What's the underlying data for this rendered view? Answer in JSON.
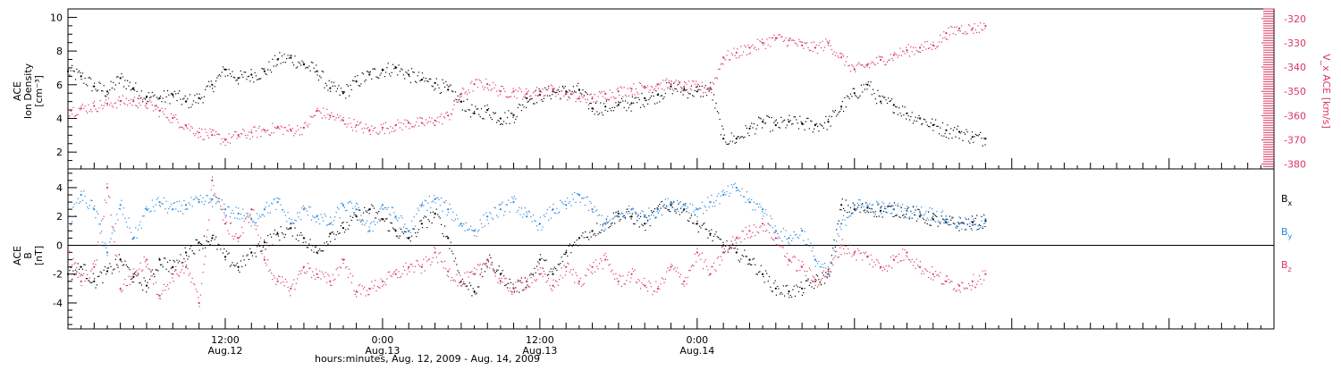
{
  "chart_data": [
    {
      "type": "scatter",
      "panel": "density-speed",
      "ylabel_left": [
        "ACE",
        "Ion Density",
        "[cm⁻³]"
      ],
      "ylabel_right": "V_x ACE [km/s]",
      "ylim_left": [
        1,
        10.5
      ],
      "yticks_left": [
        2,
        4,
        6,
        8,
        10
      ],
      "ylim_right": [
        -382,
        -316
      ],
      "yticks_right": [
        -320,
        -330,
        -340,
        -350,
        -360,
        -370,
        -380
      ],
      "grid": false,
      "colors": {
        "density": "#000000",
        "vx": "#d9375f"
      },
      "series": [
        {
          "name": "Ion Density",
          "axis": "left",
          "color": "#000000",
          "x_hours": [
            0,
            1,
            2,
            3,
            4,
            5,
            6,
            7,
            8,
            9,
            10,
            11,
            12,
            13,
            14,
            15,
            16,
            17,
            18,
            19,
            20,
            21,
            22,
            23,
            24,
            25,
            26,
            27,
            28,
            29,
            30,
            31,
            32,
            33,
            34,
            35,
            36,
            37,
            38,
            39,
            40,
            41,
            42,
            43,
            44,
            45,
            46,
            47,
            48,
            49,
            50,
            51,
            52,
            53,
            54,
            55,
            56,
            57,
            58,
            59,
            60,
            61,
            62,
            63,
            64,
            65,
            66,
            67,
            68,
            69,
            70
          ],
          "values": [
            6.8,
            6.5,
            5.9,
            5.6,
            6.4,
            5.8,
            5.3,
            5.2,
            5.4,
            5.0,
            5.2,
            6.0,
            6.9,
            6.4,
            6.6,
            6.8,
            7.5,
            7.6,
            7.2,
            6.8,
            5.8,
            5.5,
            6.2,
            6.6,
            6.9,
            7.0,
            6.6,
            6.3,
            6.1,
            5.7,
            5.0,
            4.3,
            4.5,
            4.0,
            4.2,
            5.2,
            5.4,
            5.6,
            5.6,
            5.7,
            4.6,
            4.7,
            4.8,
            4.9,
            5.2,
            5.4,
            5.9,
            5.7,
            5.6,
            5.8,
            2.8,
            2.8,
            3.4,
            3.8,
            3.6,
            3.8,
            3.7,
            3.6,
            3.8,
            4.7,
            5.5,
            6.0,
            5.0,
            4.8,
            4.3,
            4.0,
            3.6,
            3.3,
            3.2,
            2.9,
            2.8
          ]
        },
        {
          "name": "V_x",
          "axis": "right",
          "color": "#d9375f",
          "x_hours": [
            0,
            1,
            2,
            3,
            4,
            5,
            6,
            7,
            8,
            9,
            10,
            11,
            12,
            13,
            14,
            15,
            16,
            17,
            18,
            19,
            20,
            21,
            22,
            23,
            24,
            25,
            26,
            27,
            28,
            29,
            30,
            31,
            32,
            33,
            34,
            35,
            36,
            37,
            38,
            39,
            40,
            41,
            42,
            43,
            44,
            45,
            46,
            47,
            48,
            49,
            50,
            51,
            52,
            53,
            54,
            55,
            56,
            57,
            58,
            59,
            60,
            61,
            62,
            63,
            64,
            65,
            66,
            67,
            68,
            69,
            70
          ],
          "values": [
            -358,
            -357,
            -356,
            -355,
            -354,
            -354,
            -355,
            -358,
            -361,
            -364,
            -367,
            -368,
            -370,
            -368,
            -367,
            -366,
            -365,
            -366,
            -365,
            -358,
            -360,
            -362,
            -364,
            -366,
            -365,
            -364,
            -363,
            -363,
            -362,
            -360,
            -351,
            -347,
            -347,
            -350,
            -350,
            -351,
            -350,
            -349,
            -351,
            -353,
            -353,
            -351,
            -350,
            -349,
            -348,
            -347,
            -347,
            -348,
            -348,
            -349,
            -336,
            -334,
            -332,
            -330,
            -328,
            -329,
            -331,
            -332,
            -330,
            -336,
            -341,
            -339,
            -337,
            -335,
            -333,
            -332,
            -331,
            -326,
            -324,
            -324,
            -323
          ]
        }
      ]
    },
    {
      "type": "scatter",
      "panel": "imf",
      "ylabel_left": [
        "ACE",
        "B",
        "[nT]"
      ],
      "ylim": [
        -5.8,
        5.3
      ],
      "yticks": [
        -4,
        -2,
        0,
        2,
        4
      ],
      "grid": false,
      "zero_line": true,
      "colors": {
        "bx": "#000000",
        "by": "#2a87dc",
        "bz": "#d9375f"
      },
      "legend": {
        "placement": "right",
        "entries": [
          {
            "label": "Bx",
            "main": "B",
            "sub": "x",
            "color": "#000000"
          },
          {
            "label": "By",
            "main": "B",
            "sub": "y",
            "color": "#2a87dc"
          },
          {
            "label": "Bz",
            "main": "B",
            "sub": "z",
            "color": "#d9375f"
          }
        ]
      },
      "series": [
        {
          "name": "Bx",
          "color": "#000000",
          "x_hours": [
            0,
            1,
            2,
            3,
            4,
            5,
            6,
            7,
            8,
            9,
            10,
            11,
            12,
            13,
            14,
            15,
            16,
            17,
            18,
            19,
            20,
            21,
            22,
            23,
            24,
            25,
            26,
            27,
            28,
            29,
            30,
            31,
            32,
            33,
            34,
            35,
            36,
            37,
            38,
            39,
            40,
            41,
            42,
            43,
            44,
            45,
            46,
            47,
            48,
            49,
            50,
            51,
            52,
            53,
            54,
            55,
            56,
            57,
            58,
            59,
            60,
            61,
            62,
            63,
            64,
            65,
            66,
            67,
            68,
            69,
            70
          ],
          "values": [
            -2.0,
            -1.5,
            -2.5,
            -1.8,
            -1.0,
            -2.2,
            -2.8,
            -1.0,
            -1.5,
            -0.5,
            0.2,
            0.5,
            -0.8,
            -1.5,
            -0.5,
            0.2,
            0.8,
            1.2,
            0.5,
            -0.5,
            0.8,
            1.2,
            2.0,
            2.5,
            1.8,
            1.0,
            0.5,
            1.5,
            2.2,
            0.5,
            -2.5,
            -3.2,
            -1.0,
            -2.0,
            -3.0,
            -2.5,
            -1.0,
            -2.0,
            -0.5,
            0.5,
            1.0,
            1.5,
            2.2,
            2.0,
            1.5,
            2.5,
            2.8,
            2.5,
            1.5,
            0.8,
            0.0,
            -0.5,
            -1.0,
            -2.0,
            -3.0,
            -3.2,
            -3.0,
            -2.5,
            -2.0,
            2.8,
            2.5,
            2.6,
            2.4,
            2.5,
            2.4,
            2.0,
            1.8,
            1.6,
            1.5,
            1.6,
            1.7
          ]
        },
        {
          "name": "By",
          "color": "#2a87dc",
          "x_hours": [
            0,
            1,
            2,
            3,
            4,
            5,
            6,
            7,
            8,
            9,
            10,
            11,
            12,
            13,
            14,
            15,
            16,
            17,
            18,
            19,
            20,
            21,
            22,
            23,
            24,
            25,
            26,
            27,
            28,
            29,
            30,
            31,
            32,
            33,
            34,
            35,
            36,
            37,
            38,
            39,
            40,
            41,
            42,
            43,
            44,
            45,
            46,
            47,
            48,
            49,
            50,
            51,
            52,
            53,
            54,
            55,
            56,
            57,
            58,
            59,
            60,
            61,
            62,
            63,
            64,
            65,
            66,
            67,
            68,
            69,
            70
          ],
          "values": [
            1.5,
            3.5,
            2.5,
            -0.5,
            2.8,
            0.5,
            2.5,
            3.0,
            2.5,
            2.8,
            3.0,
            3.2,
            2.5,
            2.2,
            1.8,
            2.5,
            3.0,
            1.5,
            2.5,
            2.0,
            1.5,
            2.8,
            2.5,
            1.0,
            2.8,
            2.0,
            1.0,
            2.8,
            3.2,
            2.5,
            1.5,
            1.0,
            2.0,
            2.5,
            3.0,
            2.0,
            1.5,
            2.5,
            2.8,
            3.5,
            2.5,
            1.5,
            2.0,
            2.5,
            2.0,
            2.5,
            3.0,
            2.8,
            2.5,
            3.0,
            3.5,
            4.0,
            3.0,
            2.5,
            1.0,
            0.5,
            1.0,
            -1.0,
            -2.0,
            1.5,
            2.8,
            2.7,
            2.6,
            2.5,
            2.4,
            2.3,
            2.2,
            1.8,
            1.5,
            1.4,
            1.8
          ]
        },
        {
          "name": "Bz",
          "color": "#d9375f",
          "x_hours": [
            0,
            1,
            2,
            3,
            4,
            5,
            6,
            7,
            8,
            9,
            10,
            11,
            12,
            13,
            14,
            15,
            16,
            17,
            18,
            19,
            20,
            21,
            22,
            23,
            24,
            25,
            26,
            27,
            28,
            29,
            30,
            31,
            32,
            33,
            34,
            35,
            36,
            37,
            38,
            39,
            40,
            41,
            42,
            43,
            44,
            45,
            46,
            47,
            48,
            49,
            50,
            51,
            52,
            53,
            54,
            55,
            56,
            57,
            58,
            59,
            60,
            61,
            62,
            63,
            64,
            65,
            66,
            67,
            68,
            69,
            70
          ],
          "values": [
            -0.5,
            -2.5,
            -1.5,
            4.0,
            -3.0,
            -2.0,
            -1.0,
            -3.5,
            -2.0,
            -1.5,
            -4.0,
            4.5,
            1.5,
            0.5,
            2.5,
            -1.0,
            -2.5,
            -3.0,
            -1.5,
            -2.0,
            -2.5,
            -1.0,
            -3.2,
            -3.0,
            -2.5,
            -2.0,
            -1.5,
            -1.5,
            -0.5,
            -1.8,
            -2.5,
            -2.0,
            -1.0,
            -2.5,
            -3.0,
            -2.5,
            -2.0,
            -2.8,
            -1.5,
            -2.5,
            -1.5,
            -1.0,
            -2.5,
            -2.0,
            -2.8,
            -3.0,
            -1.5,
            -2.5,
            -0.5,
            -2.0,
            -0.5,
            0.5,
            1.0,
            1.5,
            0.5,
            -1.0,
            -1.5,
            -2.5,
            -1.8,
            0.0,
            -0.5,
            -0.8,
            -1.5,
            -1.0,
            -0.5,
            -1.5,
            -2.0,
            -2.5,
            -2.8,
            -2.5,
            -2.0
          ]
        }
      ]
    }
  ],
  "x_axis": {
    "title": "hours:minutes, Aug. 12, 2009 - Aug. 14, 2009",
    "labels": [
      {
        "hour": 12,
        "time": "12:00",
        "date": "Aug.12"
      },
      {
        "hour": 24,
        "time": "0:00",
        "date": "Aug.13"
      },
      {
        "hour": 36,
        "time": "12:00",
        "date": "Aug.13"
      },
      {
        "hour": 48,
        "time": "0:00",
        "date": "Aug.14"
      }
    ],
    "range_hours": [
      0,
      92
    ]
  }
}
